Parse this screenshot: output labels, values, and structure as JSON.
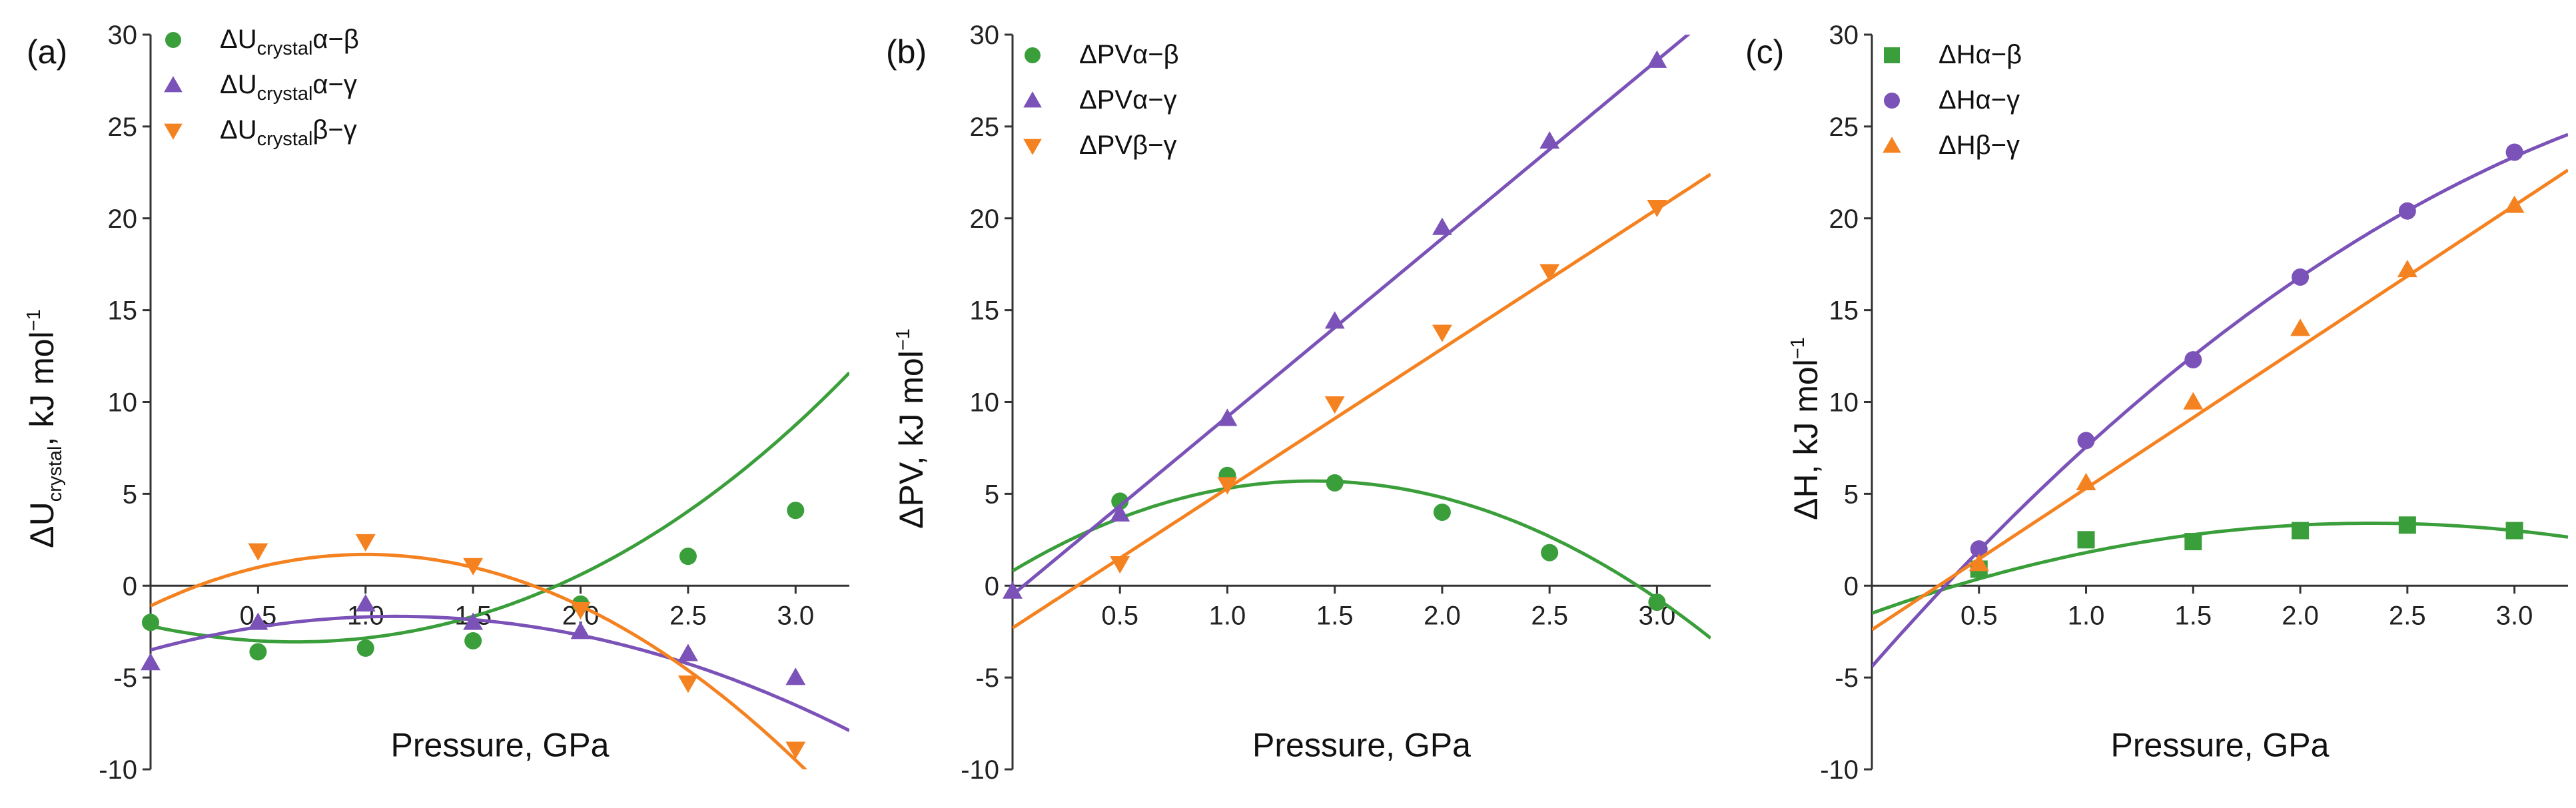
{
  "colors": {
    "green": "#3a9e3a",
    "purple": "#7b52b8",
    "orange": "#f58220"
  },
  "chart_data": [
    {
      "type": "scatter",
      "panel_label": "(a)",
      "xlabel": "Pressure, GPa",
      "ylabel_main": "ΔU",
      "ylabel_sub": "crystal",
      "ylabel_tail": ", kJ mol",
      "ylabel_sup": "−1",
      "xlim": [
        0,
        3.25
      ],
      "ylim": [
        -10,
        30
      ],
      "xticks": [
        0.5,
        1.0,
        1.5,
        2.0,
        2.5,
        3.0
      ],
      "xtick_labels": [
        "0.5",
        "1.0",
        "1.5",
        "2.0",
        "2.5",
        "3.0"
      ],
      "yticks": [
        -10,
        -5,
        0,
        5,
        10,
        15,
        20,
        25,
        30
      ],
      "ytick_labels": [
        "-10",
        "-5",
        "0",
        "5",
        "10",
        "15",
        "20",
        "25",
        "30"
      ],
      "x_axis_at_zero": true,
      "series": [
        {
          "name": "ΔUcrystalα−β",
          "legend_main": "ΔU",
          "legend_sub": "crystal",
          "legend_tail": "α−β",
          "color": "green",
          "marker": "circle",
          "x": [
            0,
            0.5,
            1.0,
            1.5,
            2.0,
            2.5,
            3.0
          ],
          "y": [
            -2.0,
            -3.6,
            -3.4,
            -3.0,
            -1.0,
            1.6,
            4.1
          ],
          "fit_coeffs": [
            -2.2,
            -2.5,
            1.75,
            0.1
          ]
        },
        {
          "name": "ΔUcrystalα−γ",
          "legend_main": "ΔU",
          "legend_sub": "crystal",
          "legend_tail": "α−γ",
          "color": "purple",
          "marker": "triangle-up",
          "x": [
            0,
            0.5,
            1.0,
            1.5,
            2.0,
            2.5,
            3.0
          ],
          "y": [
            -4.2,
            -2.0,
            -1.0,
            -2.0,
            -2.5,
            -3.7,
            -5.0
          ],
          "fit_coeffs": [
            -3.5,
            3.2,
            -1.4,
            0
          ]
        },
        {
          "name": "ΔUcrystalβ−γ",
          "legend_main": "ΔU",
          "legend_sub": "crystal",
          "legend_tail": "β−γ",
          "color": "orange",
          "marker": "triangle-down",
          "x": [
            0.5,
            1.0,
            1.5,
            2.0,
            2.5,
            3.0
          ],
          "y": [
            1.9,
            2.4,
            1.1,
            -1.3,
            -5.3,
            -8.9
          ],
          "fit_coeffs": [
            -1.1,
            5.6,
            -2.8,
            0
          ]
        }
      ]
    },
    {
      "type": "scatter",
      "panel_label": "(b)",
      "xlabel": "Pressure, GPa",
      "ylabel_main": "ΔPV",
      "ylabel_sub": "",
      "ylabel_tail": ", kJ mol",
      "ylabel_sup": "−1",
      "xlim": [
        0,
        3.25
      ],
      "ylim": [
        -10,
        30
      ],
      "xticks": [
        0.5,
        1.0,
        1.5,
        2.0,
        2.5,
        3.0
      ],
      "xtick_labels": [
        "0.5",
        "1.0",
        "1.5",
        "2.0",
        "2.5",
        "3.0"
      ],
      "yticks": [
        -10,
        -5,
        0,
        5,
        10,
        15,
        20,
        25,
        30
      ],
      "ytick_labels": [
        "-10",
        "-5",
        "0",
        "5",
        "10",
        "15",
        "20",
        "25",
        "30"
      ],
      "x_axis_at_zero": true,
      "series": [
        {
          "name": "ΔPVα−β",
          "legend_main": "ΔPV",
          "legend_sub": "",
          "legend_tail": "α−β",
          "color": "green",
          "marker": "circle",
          "x": [
            0.5,
            1.0,
            1.5,
            2.0,
            2.5,
            3.0
          ],
          "y": [
            4.6,
            6.0,
            5.6,
            4.0,
            1.8,
            -0.9
          ],
          "fit_coeffs": [
            0.8,
            7.0,
            -2.5,
            0
          ]
        },
        {
          "name": "ΔPVα−γ",
          "legend_main": "ΔPV",
          "legend_sub": "",
          "legend_tail": "α−γ",
          "color": "purple",
          "marker": "triangle-up",
          "x": [
            0,
            0.5,
            1.0,
            1.5,
            2.0,
            2.5,
            3.0
          ],
          "y": [
            -0.3,
            3.9,
            9.1,
            14.4,
            19.5,
            24.2,
            28.6
          ],
          "fit_coeffs": [
            -0.5,
            9.7,
            0,
            0
          ]
        },
        {
          "name": "ΔPVβ−γ",
          "legend_main": "ΔPV",
          "legend_sub": "",
          "legend_tail": "β−γ",
          "color": "orange",
          "marker": "triangle-down",
          "x": [
            0.5,
            1.0,
            1.5,
            2.0,
            2.5,
            3.0
          ],
          "y": [
            1.2,
            5.5,
            9.9,
            13.8,
            17.1,
            20.6
          ],
          "fit_coeffs": [
            -2.3,
            7.6,
            0,
            0
          ]
        }
      ]
    },
    {
      "type": "scatter",
      "panel_label": "(c)",
      "xlabel": "Pressure, GPa",
      "ylabel_main": "ΔH",
      "ylabel_sub": "",
      "ylabel_tail": ", kJ mol",
      "ylabel_sup": "−1",
      "xlim": [
        0,
        3.25
      ],
      "ylim": [
        -10,
        30
      ],
      "xticks": [
        0.5,
        1.0,
        1.5,
        2.0,
        2.5,
        3.0
      ],
      "xtick_labels": [
        "0.5",
        "1.0",
        "1.5",
        "2.0",
        "2.5",
        "3.0"
      ],
      "yticks": [
        -10,
        -5,
        0,
        5,
        10,
        15,
        20,
        25,
        30
      ],
      "ytick_labels": [
        "-10",
        "-5",
        "0",
        "5",
        "10",
        "15",
        "20",
        "25",
        "30"
      ],
      "x_axis_at_zero": true,
      "series": [
        {
          "name": "ΔHα−β",
          "legend_main": "ΔH",
          "legend_sub": "",
          "legend_tail": "α−β",
          "color": "green",
          "marker": "square",
          "x": [
            0.5,
            1.0,
            1.5,
            2.0,
            2.5,
            3.0
          ],
          "y": [
            0.9,
            2.5,
            2.4,
            3.0,
            3.3,
            3.0
          ],
          "fit_coeffs": [
            -1.5,
            4.2,
            -0.9,
            0
          ]
        },
        {
          "name": "ΔHα−γ",
          "legend_main": "ΔH",
          "legend_sub": "",
          "legend_tail": "α−γ",
          "color": "purple",
          "marker": "circle",
          "x": [
            0.5,
            1.0,
            1.5,
            2.0,
            2.5,
            3.0
          ],
          "y": [
            2.0,
            7.9,
            12.3,
            16.8,
            20.4,
            23.6
          ],
          "fit_coeffs": [
            -4.4,
            13.3,
            -1.35,
            0
          ]
        },
        {
          "name": "ΔHβ−γ",
          "legend_main": "ΔH",
          "legend_sub": "",
          "legend_tail": "β−γ",
          "color": "orange",
          "marker": "triangle-up",
          "x": [
            0.5,
            1.0,
            1.5,
            2.0,
            2.5,
            3.0
          ],
          "y": [
            1.2,
            5.6,
            10.0,
            14.0,
            17.2,
            20.7
          ],
          "fit_coeffs": [
            -2.4,
            7.7,
            0,
            0
          ]
        }
      ]
    }
  ]
}
